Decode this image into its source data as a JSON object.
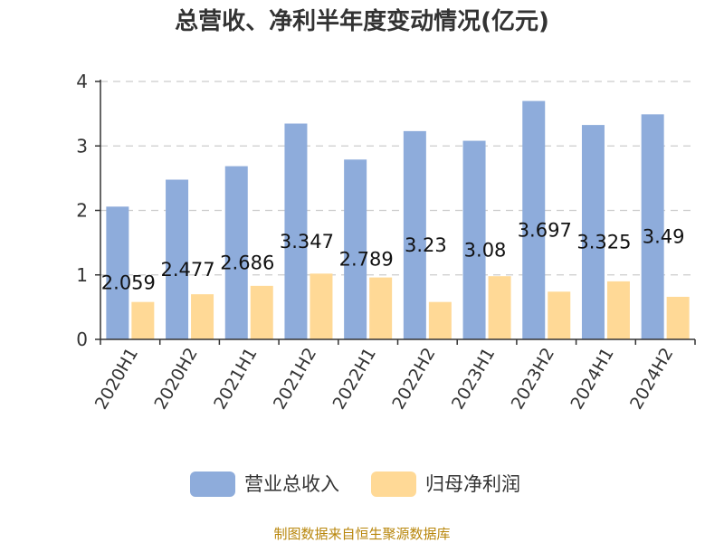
{
  "chart_data": {
    "type": "bar",
    "title": "总营收、净利半年度变动情况(亿元)",
    "xlabel": "",
    "ylabel": "",
    "ylim": [
      0,
      4
    ],
    "yticks": [
      0,
      1,
      2,
      3,
      4
    ],
    "grid": true,
    "legend_position": "bottom",
    "categories": [
      "2020H1",
      "2020H2",
      "2021H1",
      "2021H2",
      "2022H1",
      "2022H2",
      "2023H1",
      "2023H2",
      "2024H1",
      "2024H2"
    ],
    "series": [
      {
        "name": "营业总收入",
        "color": "#8eacdb",
        "values": [
          2.059,
          2.477,
          2.686,
          3.347,
          2.789,
          3.23,
          3.08,
          3.697,
          3.325,
          3.49
        ],
        "labels": [
          "2.059",
          "2.477",
          "2.686",
          "3.347",
          "2.789",
          "3.23",
          "3.08",
          "3.697",
          "3.325",
          "3.49"
        ]
      },
      {
        "name": "归母净利润",
        "color": "#ffd996",
        "values": [
          0.58,
          0.7,
          0.83,
          1.02,
          0.96,
          0.58,
          0.98,
          0.74,
          0.9,
          0.66
        ]
      }
    ]
  },
  "footer": "制图数据来自恒生聚源数据库"
}
